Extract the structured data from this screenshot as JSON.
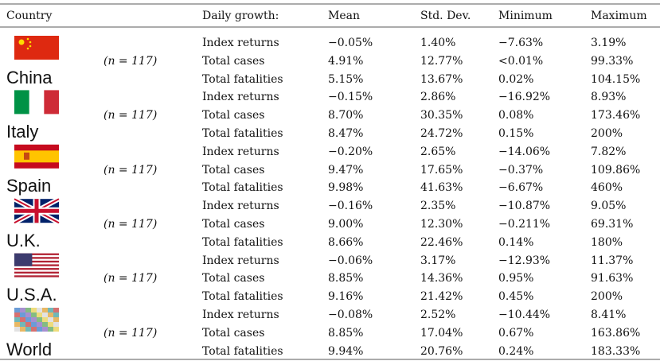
{
  "table": {
    "header": [
      "Country",
      "Daily growth:",
      "Mean",
      "Std. Dev.",
      "Minimum",
      "Maximum"
    ],
    "groups": [
      {
        "country": "China",
        "n": "(n = 117)",
        "rows": [
          [
            "Index returns",
            "−0.05%",
            "1.40%",
            "−7.63%",
            "3.19%"
          ],
          [
            "Total cases",
            "4.91%",
            "12.77%",
            "<0.01%",
            "99.33%"
          ],
          [
            "Total fatalities",
            "5.15%",
            "13.67%",
            "0.02%",
            "104.15%"
          ]
        ]
      },
      {
        "country": "Italy",
        "n": "(n = 117)",
        "rows": [
          [
            "Index returns",
            "−0.15%",
            "2.86%",
            "−16.92%",
            "8.93%"
          ],
          [
            "Total cases",
            "8.70%",
            "30.35%",
            "0.08%",
            "173.46%"
          ],
          [
            "Total fatalities",
            "8.47%",
            "24.72%",
            "0.15%",
            "200%"
          ]
        ]
      },
      {
        "country": "Spain",
        "n": "(n = 117)",
        "rows": [
          [
            "Index returns",
            "−0.20%",
            "2.65%",
            "−14.06%",
            "7.82%"
          ],
          [
            "Total cases",
            "9.47%",
            "17.65%",
            "−0.37%",
            "109.86%"
          ],
          [
            "Total fatalities",
            "9.98%",
            "41.63%",
            "−6.67%",
            "460%"
          ]
        ]
      },
      {
        "country": "U.K.",
        "n": "(n = 117)",
        "rows": [
          [
            "Index returns",
            "−0.16%",
            "2.35%",
            "−10.87%",
            "9.05%"
          ],
          [
            "Total cases",
            "9.00%",
            "12.30%",
            "−0.211%",
            "69.31%"
          ],
          [
            "Total fatalities",
            "8.66%",
            "22.46%",
            "0.14%",
            "180%"
          ]
        ]
      },
      {
        "country": "U.S.A.",
        "n": "(n = 117)",
        "rows": [
          [
            "Index returns",
            "−0.06%",
            "3.17%",
            "−12.93%",
            "11.37%"
          ],
          [
            "Total cases",
            "8.85%",
            "14.36%",
            "0.95%",
            "91.63%"
          ],
          [
            "Total fatalities",
            "9.16%",
            "21.42%",
            "0.45%",
            "200%"
          ]
        ]
      },
      {
        "country": "World",
        "n": "(n = 117)",
        "rows": [
          [
            "Index returns",
            "−0.08%",
            "2.52%",
            "−10.44%",
            "8.41%"
          ],
          [
            "Total cases",
            "8.85%",
            "17.04%",
            "0.67%",
            "163.86%"
          ],
          [
            "Total fatalities",
            "9.94%",
            "20.76%",
            "0.24%",
            "183.33%"
          ]
        ]
      }
    ]
  }
}
